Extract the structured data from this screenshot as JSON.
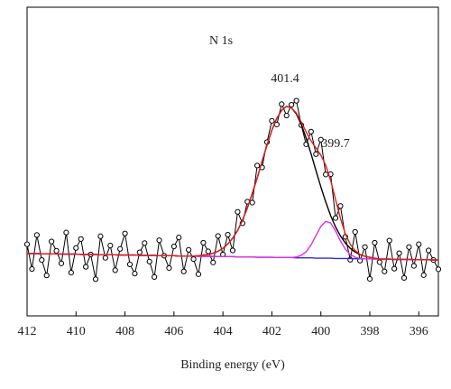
{
  "chart_data": {
    "type": "line",
    "xlabel": "Binding energy (eV)",
    "annotations": [
      "N 1s",
      "401.4",
      "399.7"
    ],
    "xlim": [
      412,
      395.2
    ],
    "ylim": [
      0,
      100
    ],
    "xticks": [
      412,
      410,
      408,
      406,
      404,
      402,
      400,
      398,
      396
    ],
    "x": [
      412.0,
      411.8,
      411.6,
      411.4,
      411.2,
      411.0,
      410.8,
      410.6,
      410.4,
      410.2,
      410.0,
      409.8,
      409.6,
      409.4,
      409.2,
      409.0,
      408.8,
      408.6,
      408.4,
      408.2,
      408.0,
      407.8,
      407.6,
      407.4,
      407.2,
      407.0,
      406.8,
      406.6,
      406.4,
      406.2,
      406.0,
      405.8,
      405.6,
      405.4,
      405.2,
      405.0,
      404.8,
      404.6,
      404.4,
      404.2,
      404.0,
      403.8,
      403.6,
      403.4,
      403.2,
      403.0,
      402.8,
      402.6,
      402.4,
      402.2,
      402.0,
      401.8,
      401.6,
      401.4,
      401.2,
      401.0,
      400.8,
      400.6,
      400.4,
      400.2,
      400.0,
      399.8,
      399.6,
      399.4,
      399.2,
      399.0,
      398.8,
      398.6,
      398.4,
      398.2,
      398.0,
      397.8,
      397.6,
      397.4,
      397.2,
      397.0,
      396.8,
      396.6,
      396.4,
      396.2,
      396.0,
      395.8,
      395.6,
      395.4,
      395.2
    ],
    "series": [
      {
        "color": "#000000",
        "markers": true,
        "values": [
          23.2,
          15.2,
          26.2,
          18.1,
          13.1,
          24.1,
          21.1,
          17.0,
          27.0,
          14.0,
          22.0,
          24.9,
          15.9,
          19.9,
          11.9,
          25.8,
          18.8,
          22.8,
          14.8,
          21.7,
          26.7,
          16.7,
          13.7,
          20.6,
          23.6,
          17.6,
          12.6,
          24.5,
          19.5,
          15.5,
          22.5,
          25.4,
          14.4,
          21.4,
          18.4,
          13.5,
          23.7,
          20.9,
          17.3,
          25.9,
          19.9,
          26.3,
          21.2,
          33.7,
          30.0,
          37.0,
          36.7,
          48.7,
          48.1,
          56.3,
          63.2,
          62.0,
          68.6,
          64.9,
          68.4,
          69.7,
          61.8,
          55.6,
          59.7,
          52.4,
          57.1,
          45.8,
          45.9,
          31.7,
          35.6,
          25.6,
          18.2,
          27.2,
          17.9,
          22.3,
          12.0,
          23.7,
          17.4,
          14.4,
          24.4,
          15.3,
          20.3,
          12.3,
          22.3,
          16.2,
          23.2,
          13.2,
          21.2,
          18.1,
          15.1
        ]
      },
      {
        "color": "#2a2ad0",
        "markers": false,
        "values": [
          20.2,
          20.2,
          20.2,
          20.1,
          20.1,
          20.1,
          20.1,
          20.0,
          20.0,
          20.0,
          20.0,
          19.9,
          19.9,
          19.9,
          19.9,
          19.8,
          19.8,
          19.8,
          19.8,
          19.7,
          19.7,
          19.7,
          19.7,
          19.6,
          19.6,
          19.6,
          19.6,
          19.5,
          19.5,
          19.5,
          19.5,
          19.4,
          19.4,
          19.4,
          19.4,
          19.3,
          19.3,
          19.3,
          19.3,
          19.2,
          19.2,
          19.2,
          19.2,
          19.1,
          19.1,
          19.1,
          19.1,
          19.0,
          19.0,
          19.0,
          19.0,
          18.9,
          18.9,
          18.9,
          18.9,
          18.8,
          18.8,
          18.8,
          18.8,
          18.7,
          18.7,
          18.7,
          18.7,
          18.6,
          18.6,
          18.6,
          18.6,
          18.5,
          18.5,
          18.5,
          18.5,
          18.4,
          18.4,
          18.4,
          18.4,
          18.3,
          18.3,
          18.3,
          18.3,
          18.2,
          18.2,
          18.2,
          18.2,
          18.1,
          18.1
        ]
      },
      {
        "color": "#000000",
        "markers": false,
        "values": [
          20.2,
          20.2,
          20.2,
          20.1,
          20.1,
          20.1,
          20.1,
          20.0,
          20.0,
          20.0,
          20.0,
          19.9,
          19.9,
          19.9,
          19.9,
          19.8,
          19.8,
          19.8,
          19.8,
          19.7,
          19.7,
          19.7,
          19.7,
          19.6,
          19.6,
          19.6,
          19.6,
          19.5,
          19.5,
          19.5,
          19.5,
          19.4,
          19.4,
          19.4,
          19.4,
          19.5,
          19.7,
          19.9,
          20.3,
          20.9,
          21.9,
          23.3,
          25.2,
          27.7,
          31.0,
          35.0,
          39.7,
          44.7,
          50.1,
          55.3,
          60.2,
          64.0,
          66.6,
          67.9,
          67.4,
          65.4,
          62.0,
          57.6,
          52.5,
          47.1,
          41.8,
          36.9,
          32.5,
          28.8,
          25.9,
          23.6,
          21.9,
          20.7,
          19.8,
          19.3,
          19.0,
          18.7,
          18.4,
          18.4,
          18.4,
          18.3,
          18.3,
          18.3,
          18.3,
          18.2,
          18.2,
          18.2,
          18.2,
          18.1,
          18.1
        ]
      },
      {
        "color": "#e030e0",
        "markers": false,
        "values": [
          20.2,
          20.2,
          20.2,
          20.1,
          20.1,
          20.1,
          20.1,
          20.0,
          20.0,
          20.0,
          20.0,
          19.9,
          19.9,
          19.9,
          19.9,
          19.8,
          19.8,
          19.8,
          19.8,
          19.7,
          19.7,
          19.7,
          19.7,
          19.6,
          19.6,
          19.6,
          19.6,
          19.5,
          19.5,
          19.5,
          19.5,
          19.4,
          19.4,
          19.4,
          19.4,
          19.3,
          19.3,
          19.3,
          19.3,
          19.2,
          19.2,
          19.2,
          19.2,
          19.1,
          19.1,
          19.1,
          19.1,
          19.0,
          19.0,
          19.0,
          19.0,
          18.9,
          18.9,
          18.9,
          18.9,
          19.1,
          19.6,
          20.8,
          23.0,
          26.0,
          29.0,
          30.6,
          30.1,
          27.5,
          24.3,
          21.6,
          19.9,
          19.0,
          18.6,
          18.5,
          18.5,
          18.4,
          18.4,
          18.4,
          18.4,
          18.3,
          18.3,
          18.3,
          18.3,
          18.2,
          18.2,
          18.2,
          18.2,
          18.1,
          18.1
        ]
      },
      {
        "color": "#e02020",
        "markers": false,
        "values": [
          20.2,
          20.2,
          20.2,
          20.1,
          20.1,
          20.1,
          20.1,
          20.0,
          20.0,
          20.0,
          20.0,
          19.9,
          19.9,
          19.9,
          19.9,
          19.8,
          19.8,
          19.8,
          19.8,
          19.7,
          19.7,
          19.7,
          19.7,
          19.6,
          19.6,
          19.6,
          19.6,
          19.5,
          19.5,
          19.5,
          19.5,
          19.4,
          19.4,
          19.4,
          19.4,
          19.5,
          19.7,
          19.9,
          20.3,
          20.9,
          21.9,
          23.3,
          25.2,
          27.7,
          31.0,
          35.0,
          39.7,
          44.7,
          50.1,
          55.3,
          60.2,
          64.0,
          66.6,
          67.9,
          67.4,
          65.7,
          62.8,
          59.6,
          56.7,
          54.4,
          52.1,
          48.8,
          43.9,
          37.7,
          31.6,
          26.6,
          23.2,
          21.2,
          19.9,
          19.3,
          19.0,
          18.7,
          18.4,
          18.4,
          18.4,
          18.3,
          18.3,
          18.3,
          18.3,
          18.2,
          18.2,
          18.2,
          18.2,
          18.1,
          18.1
        ]
      }
    ]
  }
}
